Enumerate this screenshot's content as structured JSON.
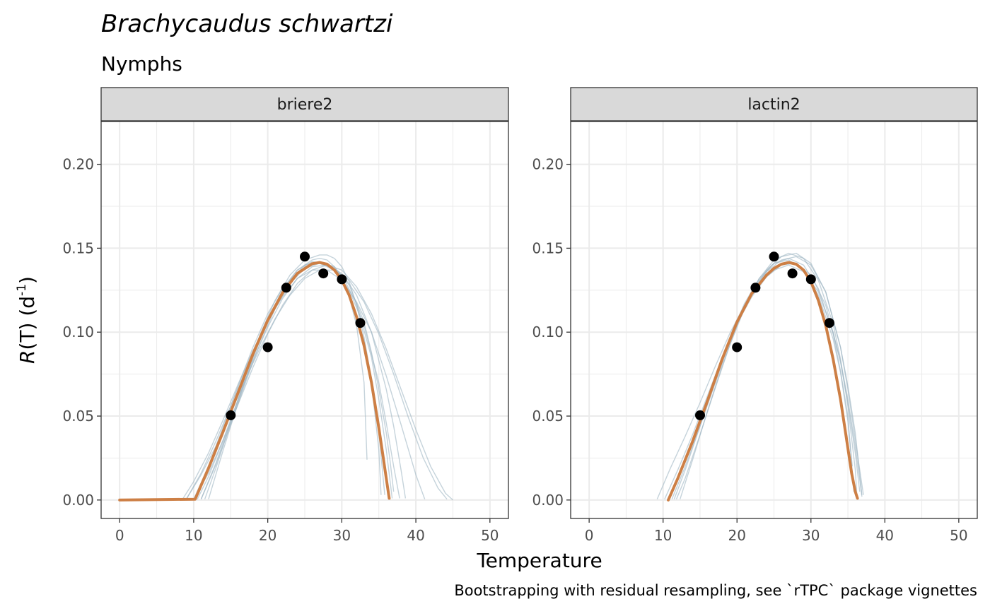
{
  "title": "Brachycaudus schwartzi",
  "subtitle": "Nymphs",
  "caption": "Bootstrapping with residual resampling, see `rTPC` package vignettes",
  "xlabel": "Temperature",
  "ylabel": {
    "italic": "R",
    "plain": "(T) (d",
    "sup": "-1",
    "close": ")"
  },
  "colors": {
    "fit": "#cd7f45",
    "boot": "#9fb6c3",
    "points": "#000000",
    "strip_fill": "#d9d9d9",
    "grid": "#ebebeb"
  },
  "chart_data": {
    "type": "line",
    "x_range": [
      -2.5,
      52.5
    ],
    "y_range": [
      -0.011,
      0.2255
    ],
    "x_ticks": [
      0,
      10,
      20,
      30,
      40,
      50
    ],
    "y_ticks": [
      0,
      0.05,
      0.1,
      0.15,
      0.2
    ],
    "x_tick_labels": [
      "0",
      "10",
      "20",
      "30",
      "40",
      "50"
    ],
    "y_tick_labels": [
      "0.00",
      "0.05",
      "0.10",
      "0.15",
      "0.20"
    ],
    "grid": true,
    "points": {
      "x": [
        15,
        20,
        22.5,
        25,
        27.5,
        30,
        32.5
      ],
      "y": [
        0.0505,
        0.091,
        0.1265,
        0.145,
        0.135,
        0.1315,
        0.1055
      ]
    },
    "panels": [
      {
        "strip": "briere2",
        "fit": {
          "x": [
            0,
            10.2,
            12,
            14,
            16,
            18,
            20,
            22,
            24,
            26,
            27,
            28,
            29,
            30,
            31,
            32,
            33,
            34,
            35,
            35.5,
            36,
            36.4
          ],
          "y": [
            0,
            0.0005,
            0.019,
            0.041,
            0.064,
            0.087,
            0.107,
            0.1235,
            0.135,
            0.1408,
            0.1415,
            0.1405,
            0.137,
            0.131,
            0.122,
            0.109,
            0.092,
            0.07,
            0.043,
            0.028,
            0.013,
            0.001
          ]
        },
        "boot": [
          {
            "x": [
              12,
              14,
              16,
              18,
              20,
              22,
              24,
              26,
              27,
              28,
              29,
              30,
              31,
              32,
              33,
              33.4
            ],
            "y": [
              0.0005,
              0.03,
              0.058,
              0.085,
              0.108,
              0.125,
              0.137,
              0.143,
              0.144,
              0.143,
              0.139,
              0.132,
              0.121,
              0.104,
              0.07,
              0.024
            ]
          },
          {
            "x": [
              11,
              13,
              15,
              17,
              19,
              21,
              23,
              25,
              27,
              29,
              31,
              33,
              34,
              35,
              35.3
            ],
            "y": [
              0.0005,
              0.022,
              0.047,
              0.072,
              0.096,
              0.116,
              0.131,
              0.14,
              0.142,
              0.137,
              0.123,
              0.095,
              0.07,
              0.03,
              0.003
            ]
          },
          {
            "x": [
              10,
              12,
              14,
              16,
              18,
              20,
              22,
              24,
              26,
              28,
              30,
              32,
              34,
              35,
              36,
              36.8
            ],
            "y": [
              0.0005,
              0.02,
              0.044,
              0.068,
              0.091,
              0.111,
              0.126,
              0.137,
              0.142,
              0.141,
              0.134,
              0.117,
              0.085,
              0.06,
              0.03,
              0.001
            ]
          },
          {
            "x": [
              9,
              11,
              13,
              15,
              17,
              19,
              21,
              23,
              25,
              27,
              29,
              31,
              33,
              35,
              36,
              37,
              37.8
            ],
            "y": [
              0.0005,
              0.016,
              0.035,
              0.056,
              0.078,
              0.098,
              0.115,
              0.129,
              0.138,
              0.141,
              0.137,
              0.125,
              0.104,
              0.07,
              0.046,
              0.02,
              0.001
            ]
          },
          {
            "x": [
              10.5,
              12,
              14,
              16,
              18,
              20,
              22,
              24,
              26,
              28,
              30,
              32,
              34,
              36,
              37,
              38,
              38.6
            ],
            "y": [
              0.0005,
              0.014,
              0.036,
              0.06,
              0.083,
              0.103,
              0.12,
              0.132,
              0.139,
              0.14,
              0.135,
              0.122,
              0.1,
              0.066,
              0.044,
              0.018,
              0.001
            ]
          },
          {
            "x": [
              8.5,
              10,
              12,
              14,
              16,
              18,
              20,
              22,
              24,
              26,
              28,
              30,
              32,
              34,
              36,
              38,
              40,
              41.2
            ],
            "y": [
              0.0005,
              0.011,
              0.028,
              0.048,
              0.069,
              0.089,
              0.107,
              0.121,
              0.132,
              0.137,
              0.137,
              0.131,
              0.118,
              0.1,
              0.074,
              0.045,
              0.015,
              0.0005
            ]
          },
          {
            "x": [
              9,
              11,
              13,
              15,
              17,
              19,
              21,
              23,
              25,
              27,
              29,
              31,
              33,
              35,
              37,
              39,
              41,
              43,
              44.2
            ],
            "y": [
              0.0005,
              0.015,
              0.032,
              0.052,
              0.072,
              0.091,
              0.108,
              0.122,
              0.132,
              0.137,
              0.137,
              0.131,
              0.118,
              0.099,
              0.075,
              0.049,
              0.025,
              0.007,
              0.0005
            ]
          },
          {
            "x": [
              10,
              12,
              14,
              16,
              18,
              20,
              22,
              24,
              26,
              28,
              30,
              32,
              34,
              36,
              38,
              40,
              42,
              44,
              45
            ],
            "y": [
              0.0005,
              0.016,
              0.036,
              0.057,
              0.079,
              0.099,
              0.116,
              0.129,
              0.137,
              0.14,
              0.137,
              0.127,
              0.111,
              0.09,
              0.066,
              0.042,
              0.02,
              0.004,
              0.0
            ]
          },
          {
            "x": [
              11.5,
              13,
              15,
              17,
              19,
              21,
              23,
              25,
              27,
              28,
              29,
              30,
              31,
              32,
              33,
              34,
              35,
              35.8
            ],
            "y": [
              0.0005,
              0.019,
              0.046,
              0.074,
              0.099,
              0.119,
              0.134,
              0.143,
              0.146,
              0.146,
              0.144,
              0.139,
              0.13,
              0.116,
              0.097,
              0.072,
              0.04,
              0.003
            ]
          },
          {
            "x": [
              11,
              13,
              15,
              17,
              19,
              21,
              23,
              25,
              27,
              29,
              31,
              33,
              34,
              35,
              36,
              36.5,
              37
            ],
            "y": [
              0.0005,
              0.021,
              0.045,
              0.07,
              0.094,
              0.114,
              0.129,
              0.139,
              0.142,
              0.139,
              0.128,
              0.106,
              0.088,
              0.066,
              0.04,
              0.024,
              0.005
            ]
          }
        ]
      },
      {
        "strip": "lactin2",
        "fit": {
          "x": [
            10.7,
            12,
            14,
            16,
            18,
            20,
            22,
            24,
            25,
            26,
            27,
            28,
            29,
            30,
            31,
            32,
            33,
            34,
            35,
            35.5,
            36,
            36.3
          ],
          "y": [
            0.0,
            0.013,
            0.035,
            0.059,
            0.084,
            0.106,
            0.123,
            0.134,
            0.138,
            0.1405,
            0.1415,
            0.1405,
            0.137,
            0.13,
            0.119,
            0.104,
            0.084,
            0.06,
            0.031,
            0.016,
            0.005,
            0.001
          ]
        },
        "boot": [
          {
            "x": [
              9.2,
              11,
              13,
              15,
              17,
              19,
              21,
              23,
              25,
              27,
              29,
              31,
              33,
              34,
              35,
              36,
              36.6
            ],
            "y": [
              0.0005,
              0.019,
              0.038,
              0.058,
              0.079,
              0.099,
              0.116,
              0.129,
              0.137,
              0.14,
              0.136,
              0.124,
              0.1,
              0.082,
              0.058,
              0.028,
              0.005
            ]
          },
          {
            "x": [
              10.2,
              12,
              14,
              16,
              18,
              20,
              22,
              24,
              26,
              28,
              30,
              32,
              34,
              35,
              36,
              36.9
            ],
            "y": [
              0.0005,
              0.018,
              0.039,
              0.062,
              0.085,
              0.105,
              0.121,
              0.133,
              0.14,
              0.141,
              0.134,
              0.116,
              0.083,
              0.06,
              0.032,
              0.002
            ]
          },
          {
            "x": [
              11.2,
              13,
              15,
              17,
              19,
              21,
              23,
              25,
              27,
              29,
              31,
              33,
              34,
              35,
              35.8
            ],
            "y": [
              0.0005,
              0.02,
              0.044,
              0.069,
              0.094,
              0.115,
              0.131,
              0.141,
              0.144,
              0.14,
              0.126,
              0.099,
              0.077,
              0.05,
              0.005
            ]
          },
          {
            "x": [
              11.8,
              13,
              15,
              17,
              19,
              21,
              23,
              25,
              27,
              29,
              31,
              33,
              34,
              35,
              36,
              36.2
            ],
            "y": [
              0.0005,
              0.013,
              0.039,
              0.066,
              0.092,
              0.114,
              0.132,
              0.143,
              0.147,
              0.144,
              0.131,
              0.105,
              0.084,
              0.056,
              0.018,
              0.004
            ]
          },
          {
            "x": [
              12.3,
              14,
              16,
              18,
              20,
              22,
              24,
              26,
              28,
              30,
              32,
              34,
              35,
              36,
              36.9
            ],
            "y": [
              0.0005,
              0.024,
              0.053,
              0.08,
              0.104,
              0.123,
              0.137,
              0.145,
              0.147,
              0.141,
              0.124,
              0.091,
              0.068,
              0.04,
              0.003
            ]
          },
          {
            "x": [
              11.5,
              13,
              15,
              17,
              19,
              21,
              23,
              25,
              27,
              29,
              31,
              33,
              34,
              35,
              35.6
            ],
            "y": [
              0.0005,
              0.018,
              0.044,
              0.071,
              0.096,
              0.117,
              0.132,
              0.141,
              0.143,
              0.137,
              0.122,
              0.096,
              0.076,
              0.047,
              0.02
            ]
          },
          {
            "x": [
              10.8,
              12,
              14,
              16,
              18,
              20,
              22,
              24,
              26,
              28,
              30,
              32,
              34,
              35,
              36,
              37.1
            ],
            "y": [
              0.0005,
              0.013,
              0.036,
              0.06,
              0.084,
              0.105,
              0.123,
              0.136,
              0.143,
              0.145,
              0.14,
              0.124,
              0.091,
              0.066,
              0.036,
              0.003
            ]
          }
        ]
      }
    ]
  }
}
